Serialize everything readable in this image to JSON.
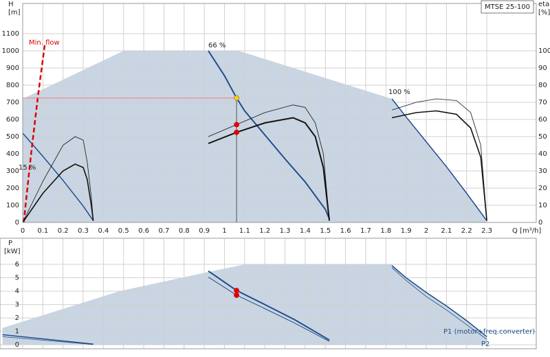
{
  "chart_data": [
    {
      "type": "line",
      "title": "MTSE 25-100",
      "ylabel": "H",
      "yunit": "[m]",
      "y2label": "eta",
      "y2unit": "[%]",
      "xlabel": "Q [m³/h]",
      "xlim": [
        0,
        2.545
      ],
      "ylim": [
        0,
        1276
      ],
      "y2lim": [
        0,
        127.6
      ],
      "xticks": [
        0,
        0.1,
        0.2,
        0.3,
        0.4,
        0.5,
        0.6,
        0.7,
        0.8,
        0.9,
        1,
        1.1,
        1.2,
        1.3,
        1.4,
        1.5,
        1.6,
        1.7,
        1.8,
        1.9,
        2,
        2.1,
        2.2,
        2.3
      ],
      "yticks": [
        0,
        100,
        200,
        300,
        400,
        500,
        600,
        700,
        800,
        900,
        1000,
        1100
      ],
      "y2ticks": [
        0,
        10,
        20,
        30,
        40,
        50,
        60,
        70,
        80,
        90,
        100
      ],
      "xtick_labels": true,
      "grid": true,
      "annotations": [
        {
          "text": "Min. flow",
          "color": "#e00000"
        },
        {
          "text": "66 %",
          "color": "#222222"
        },
        {
          "text": "100 %",
          "color": "#222222"
        },
        {
          "text": "15 %",
          "color": "#222222"
        }
      ],
      "series": [
        {
          "style": "area",
          "color": "#c9d5e2",
          "x": [
            0,
            0.5,
            1.07,
            1.83,
            1.9,
            2.0,
            2.1,
            2.2,
            2.3,
            2.3,
            0
          ],
          "values": [
            720,
            1000,
            1000,
            720,
            615,
            470,
            325,
            170,
            10,
            0,
            0
          ]
        },
        {
          "style": "line",
          "color": "#1f4e8c",
          "width": 1.5,
          "x": [
            0,
            0.1,
            0.2,
            0.3,
            0.35
          ],
          "values": [
            520,
            385,
            245,
            95,
            10
          ]
        },
        {
          "style": "line",
          "color": "#1f4e8c",
          "width": 2,
          "x": [
            0.92,
            1.0,
            1.06,
            1.1,
            1.2,
            1.3,
            1.4,
            1.5,
            1.52
          ],
          "values": [
            1000,
            855,
            725,
            650,
            510,
            370,
            236,
            76,
            20
          ]
        },
        {
          "style": "line",
          "color": "#1f4e8c",
          "width": 1.5,
          "x": [
            1.83,
            1.9,
            2.0,
            2.1,
            2.2,
            2.3
          ],
          "values": [
            720,
            615,
            470,
            325,
            170,
            10
          ]
        },
        {
          "style": "dashed",
          "color": "#e00000",
          "width": 2.5,
          "x": [
            0.005,
            0.04,
            0.075,
            0.11
          ],
          "values": [
            0,
            380,
            730,
            1040
          ]
        },
        {
          "style": "line",
          "color": "#f08080",
          "width": 1,
          "x": [
            0,
            1.06
          ],
          "values": [
            725,
            725
          ]
        },
        {
          "style": "line",
          "color": "#555555",
          "width": 1,
          "x": [
            1.06,
            1.06
          ],
          "values": [
            0,
            725
          ]
        },
        {
          "style": "point",
          "color": "#f5d020",
          "x": [
            1.06
          ],
          "values": [
            725
          ]
        },
        {
          "style": "line",
          "axis": "y2",
          "color": "#111111",
          "width": 0.8,
          "x": [
            0,
            0.1,
            0.2,
            0.26,
            0.3,
            0.32,
            0.34,
            0.35
          ],
          "values": [
            0,
            24,
            45,
            50,
            48,
            35,
            15,
            1
          ]
        },
        {
          "style": "line",
          "axis": "y2",
          "color": "#111111",
          "width": 1.6,
          "x": [
            0,
            0.1,
            0.2,
            0.26,
            0.3,
            0.32,
            0.34,
            0.35
          ],
          "values": [
            0,
            17,
            30,
            34,
            32,
            25,
            10,
            1
          ]
        },
        {
          "style": "line",
          "axis": "y2",
          "color": "#111111",
          "width": 0.8,
          "x": [
            0.92,
            1.06,
            1.2,
            1.34,
            1.4,
            1.45,
            1.49,
            1.52
          ],
          "values": [
            50,
            57,
            64,
            68.5,
            67,
            58,
            40,
            1
          ]
        },
        {
          "style": "line",
          "axis": "y2",
          "color": "#111111",
          "width": 2,
          "x": [
            0.92,
            1.06,
            1.2,
            1.34,
            1.4,
            1.45,
            1.49,
            1.52
          ],
          "values": [
            46,
            52.5,
            58,
            61,
            58,
            50,
            32,
            1
          ]
        },
        {
          "style": "line",
          "axis": "y2",
          "color": "#111111",
          "width": 0.8,
          "x": [
            1.83,
            1.95,
            2.05,
            2.15,
            2.22,
            2.27,
            2.3
          ],
          "values": [
            65.5,
            70,
            72,
            71,
            64,
            45,
            1
          ]
        },
        {
          "style": "line",
          "axis": "y2",
          "color": "#111111",
          "width": 1.6,
          "x": [
            1.83,
            1.95,
            2.05,
            2.15,
            2.22,
            2.27,
            2.3
          ],
          "values": [
            61,
            64,
            65,
            63,
            55,
            38,
            1
          ]
        },
        {
          "style": "point",
          "axis": "y2",
          "color": "#e00000",
          "x": [
            1.06
          ],
          "values": [
            57
          ]
        },
        {
          "style": "point",
          "axis": "y2",
          "color": "#e00000",
          "x": [
            1.06
          ],
          "values": [
            52.5
          ]
        }
      ]
    },
    {
      "type": "line",
      "ylabel": "P",
      "yunit": "[kW]",
      "xlim": [
        -0.112,
        2.545
      ],
      "ylim": [
        -0.3,
        7.95
      ],
      "xticks": [
        0,
        0.1,
        0.2,
        0.3,
        0.4,
        0.5,
        0.6,
        0.7,
        0.8,
        0.9,
        1,
        1.1,
        1.2,
        1.3,
        1.4,
        1.5,
        1.6,
        1.7,
        1.8,
        1.9,
        2,
        2.1,
        2.2,
        2.3
      ],
      "yticks": [
        0,
        1,
        2,
        3,
        4,
        5,
        6
      ],
      "xtick_labels": false,
      "grid": true,
      "annotations": [
        {
          "text": "P1 (motor+freq.converter)",
          "color": "#1f4e8c"
        },
        {
          "text": "P2",
          "color": "#1f4e8c"
        }
      ],
      "series": [
        {
          "style": "area",
          "color": "#c9d5e2",
          "x": [
            -0.1,
            0.48,
            0.91,
            1.1,
            1.83,
            1.9,
            2.0,
            2.1,
            2.2,
            2.3,
            2.3,
            -0.1
          ],
          "values": [
            1.25,
            4.0,
            5.4,
            6.0,
            6.0,
            5.0,
            3.9,
            2.9,
            1.8,
            0.6,
            0,
            0
          ]
        },
        {
          "style": "line",
          "color": "#1f4e8c",
          "width": 1.5,
          "x": [
            -0.1,
            0.35
          ],
          "values": [
            0.75,
            0.05
          ]
        },
        {
          "style": "line",
          "color": "#1f4e8c",
          "width": 0.8,
          "x": [
            -0.1,
            0.35
          ],
          "values": [
            0.6,
            0.02
          ]
        },
        {
          "style": "line",
          "color": "#1f4e8c",
          "width": 2,
          "x": [
            0.92,
            1.06,
            1.2,
            1.35,
            1.52
          ],
          "values": [
            5.5,
            4.05,
            3.0,
            1.85,
            0.35
          ]
        },
        {
          "style": "line",
          "color": "#1f4e8c",
          "width": 1,
          "x": [
            0.92,
            1.06,
            1.2,
            1.35,
            1.52
          ],
          "values": [
            5.05,
            3.7,
            2.7,
            1.6,
            0.25
          ]
        },
        {
          "style": "line",
          "color": "#1f4e8c",
          "width": 1.5,
          "x": [
            1.83,
            1.9,
            2.0,
            2.1,
            2.2,
            2.3
          ],
          "values": [
            5.9,
            5.0,
            3.9,
            2.9,
            1.8,
            0.6
          ]
        },
        {
          "style": "line",
          "color": "#1f4e8c",
          "width": 0.8,
          "x": [
            1.83,
            1.9,
            2.0,
            2.1,
            2.2,
            2.3
          ],
          "values": [
            5.75,
            4.8,
            3.6,
            2.6,
            1.5,
            0.4
          ]
        },
        {
          "style": "point",
          "color": "#e00000",
          "x": [
            1.06
          ],
          "values": [
            4.05
          ]
        },
        {
          "style": "point",
          "color": "#e00000",
          "x": [
            1.06
          ],
          "values": [
            3.7
          ]
        }
      ]
    }
  ]
}
